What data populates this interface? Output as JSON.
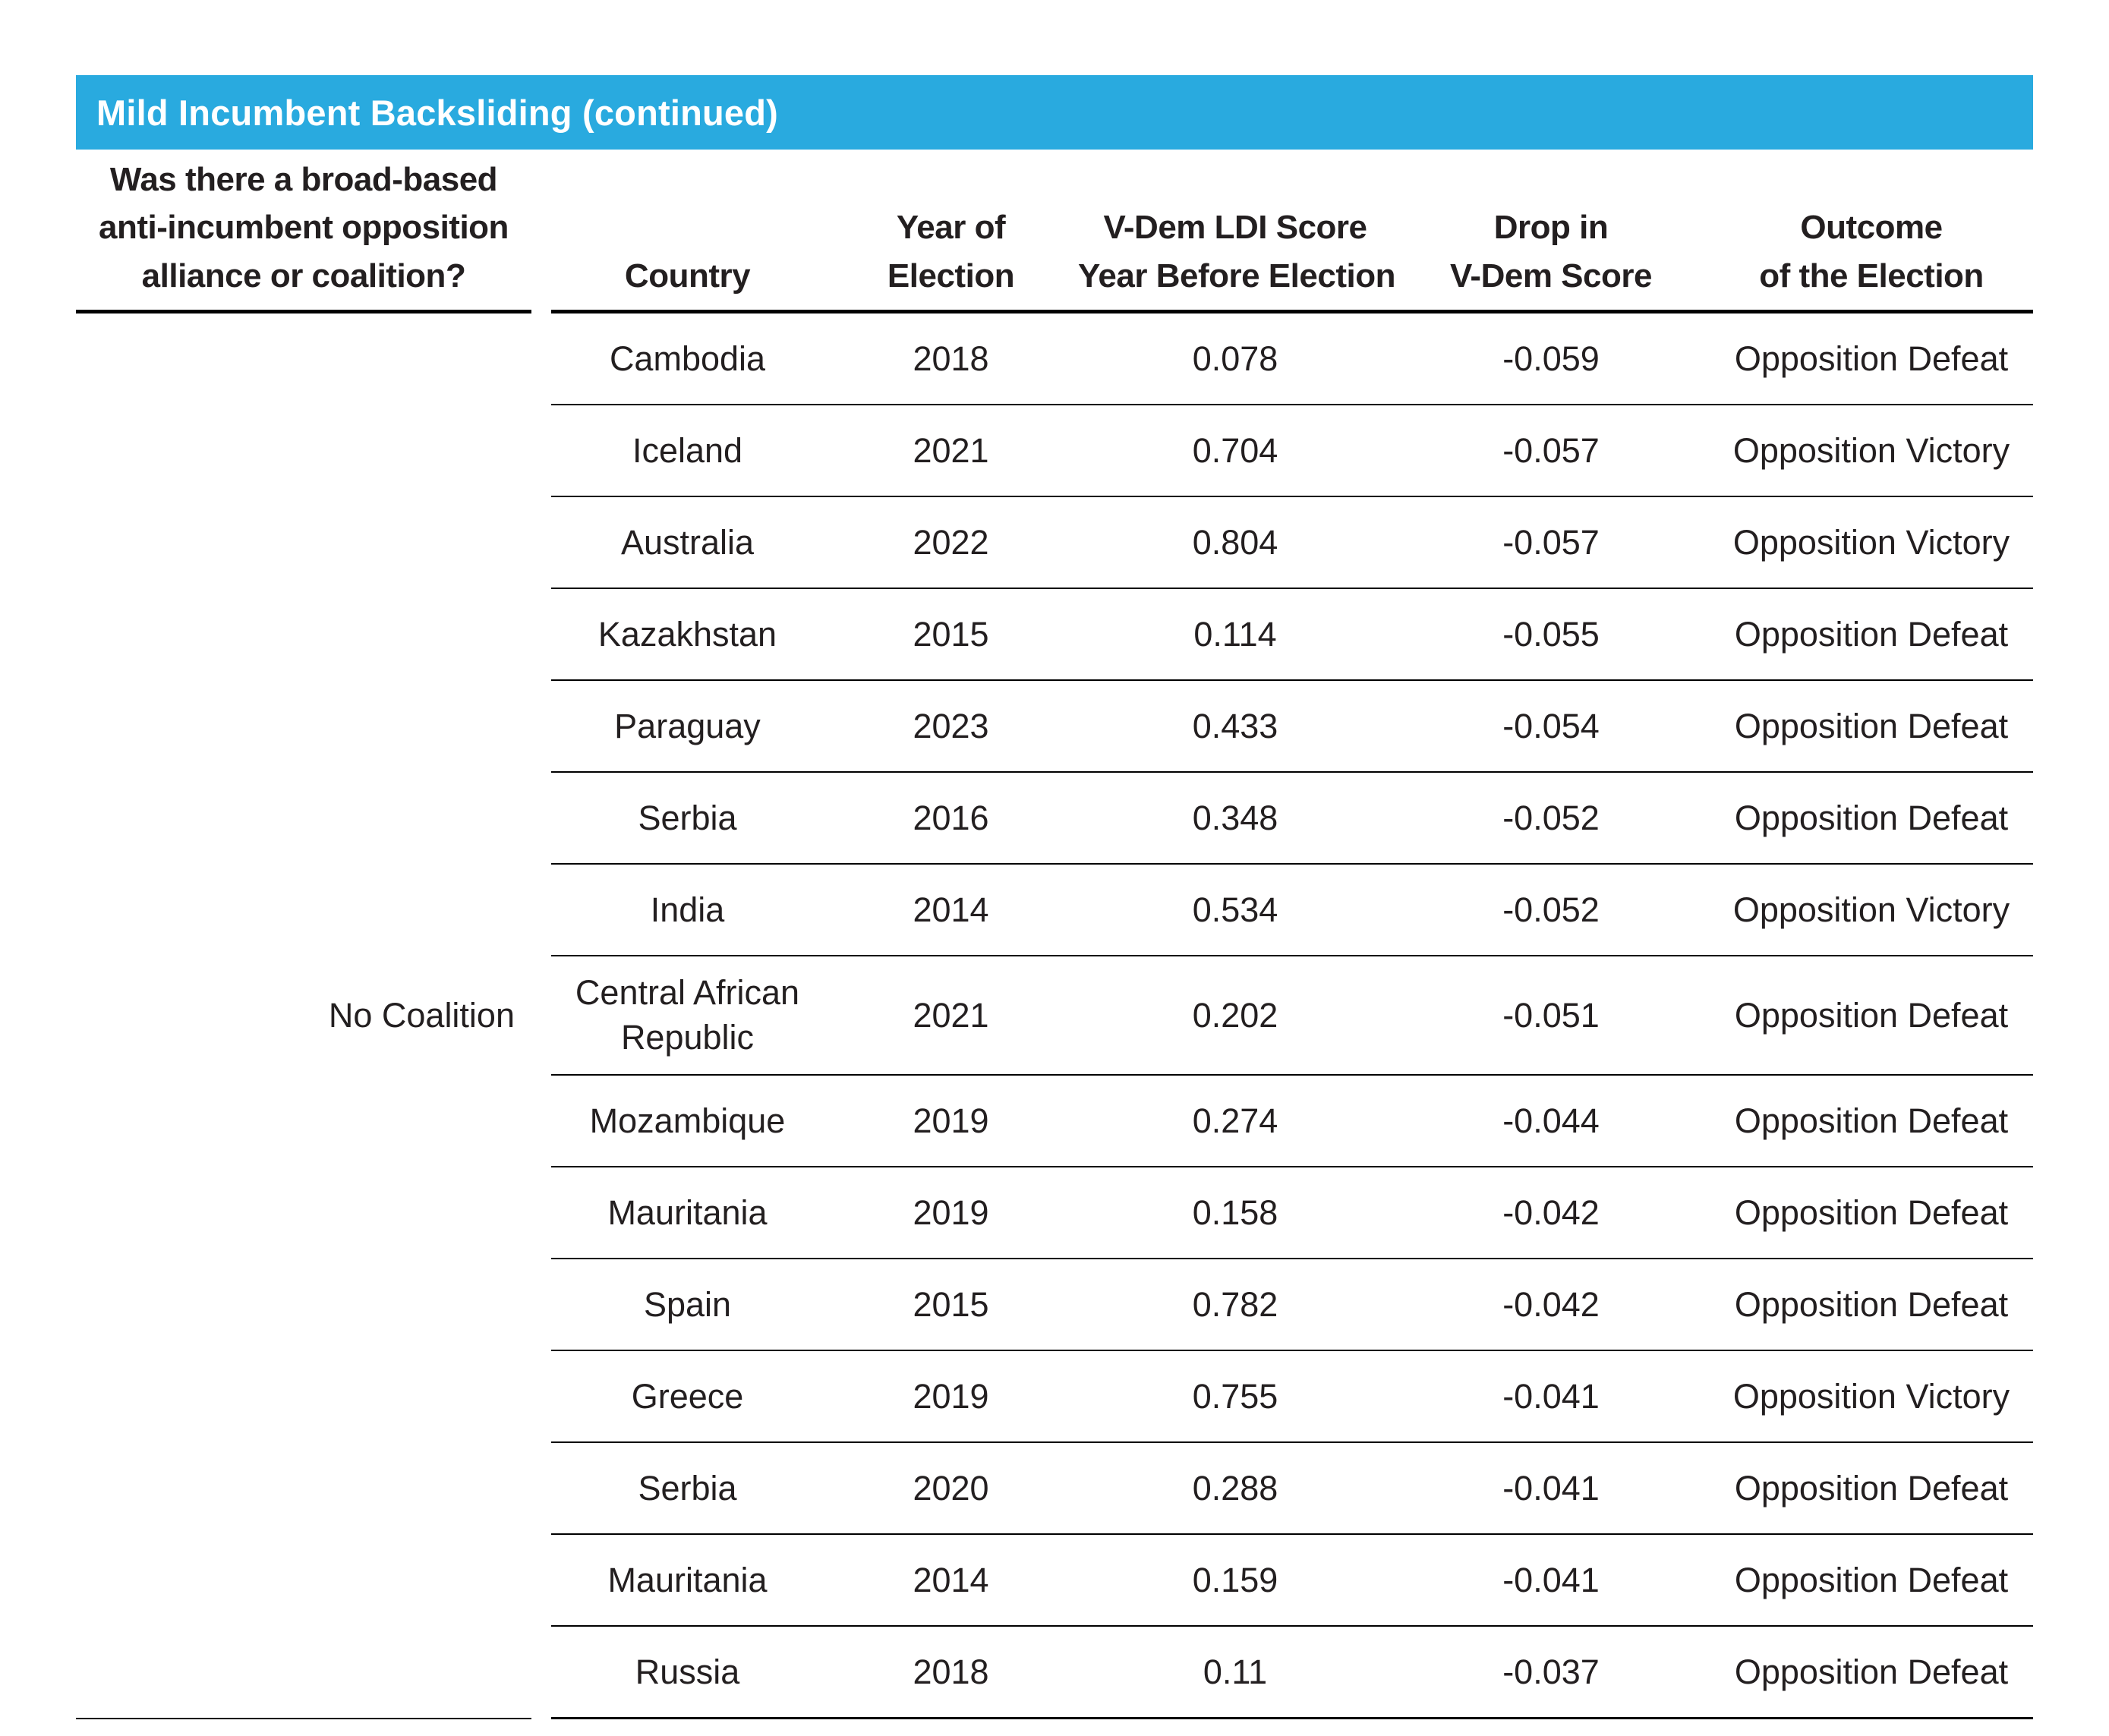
{
  "title": "Mild Incumbent Backsliding (continued)",
  "colors": {
    "title_bar_background": "#29AADF",
    "title_text": "#FFFFFF",
    "body_text": "#231F20",
    "rule_lines": "#000000"
  },
  "table": {
    "coalition_header": "Was there a broad-based\nanti-incumbent opposition\nalliance or coalition?",
    "coalition_group_label": "No Coalition",
    "columns": [
      "Country",
      "Year of\nElection",
      "V-Dem LDI Score\nYear Before Election",
      "Drop in\nV-Dem Score",
      "Outcome\nof the Election"
    ],
    "rows": [
      {
        "country": "Cambodia",
        "year": "2018",
        "ldi_score": "0.078",
        "drop": "-0.059",
        "outcome": "Opposition Defeat"
      },
      {
        "country": "Iceland",
        "year": "2021",
        "ldi_score": "0.704",
        "drop": "-0.057",
        "outcome": "Opposition Victory"
      },
      {
        "country": "Australia",
        "year": "2022",
        "ldi_score": "0.804",
        "drop": "-0.057",
        "outcome": "Opposition Victory"
      },
      {
        "country": "Kazakhstan",
        "year": "2015",
        "ldi_score": "0.114",
        "drop": "-0.055",
        "outcome": "Opposition Defeat"
      },
      {
        "country": "Paraguay",
        "year": "2023",
        "ldi_score": "0.433",
        "drop": "-0.054",
        "outcome": "Opposition Defeat"
      },
      {
        "country": "Serbia",
        "year": "2016",
        "ldi_score": "0.348",
        "drop": "-0.052",
        "outcome": "Opposition Defeat"
      },
      {
        "country": "India",
        "year": "2014",
        "ldi_score": "0.534",
        "drop": "-0.052",
        "outcome": "Opposition Victory"
      },
      {
        "country": "Central African\nRepublic",
        "year": "2021",
        "ldi_score": "0.202",
        "drop": "-0.051",
        "outcome": "Opposition Defeat"
      },
      {
        "country": "Mozambique",
        "year": "2019",
        "ldi_score": "0.274",
        "drop": "-0.044",
        "outcome": "Opposition Defeat"
      },
      {
        "country": "Mauritania",
        "year": "2019",
        "ldi_score": "0.158",
        "drop": "-0.042",
        "outcome": "Opposition Defeat"
      },
      {
        "country": "Spain",
        "year": "2015",
        "ldi_score": "0.782",
        "drop": "-0.042",
        "outcome": "Opposition Defeat"
      },
      {
        "country": "Greece",
        "year": "2019",
        "ldi_score": "0.755",
        "drop": "-0.041",
        "outcome": "Opposition Victory"
      },
      {
        "country": "Serbia",
        "year": "2020",
        "ldi_score": "0.288",
        "drop": "-0.041",
        "outcome": "Opposition Defeat"
      },
      {
        "country": "Mauritania",
        "year": "2014",
        "ldi_score": "0.159",
        "drop": "-0.041",
        "outcome": "Opposition Defeat"
      },
      {
        "country": "Russia",
        "year": "2018",
        "ldi_score": "0.11",
        "drop": "-0.037",
        "outcome": "Opposition Defeat"
      }
    ]
  }
}
